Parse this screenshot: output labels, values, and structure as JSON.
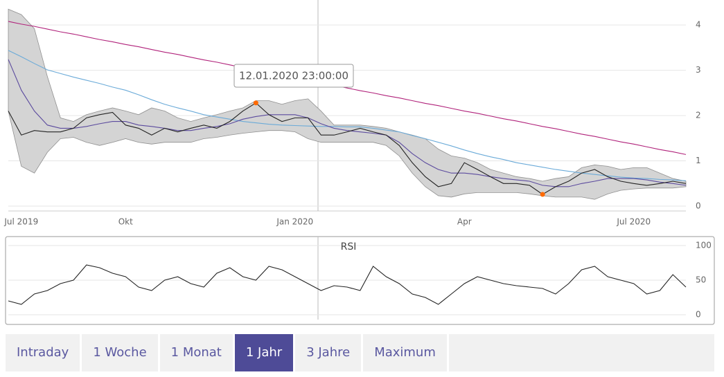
{
  "chart_data": [
    {
      "type": "line",
      "categories": [
        null,
        "Jul 2019",
        null,
        null,
        null,
        null,
        null,
        null,
        null,
        "Okt",
        null,
        null,
        null,
        null,
        null,
        null,
        null,
        null,
        null,
        null,
        null,
        null,
        "Jan 2020",
        null,
        null,
        null,
        null,
        null,
        null,
        null,
        null,
        null,
        null,
        null,
        null,
        "Apr",
        null,
        null,
        null,
        null,
        null,
        null,
        null,
        null,
        null,
        null,
        null,
        null,
        "Jul 2020",
        null,
        null,
        null,
        null
      ],
      "ylim": [
        0,
        4.4
      ],
      "yticks": [
        0,
        1,
        2,
        3,
        4
      ],
      "grid": true,
      "band": {
        "color": "#d4d4d4",
        "edge_color": "#8f8f8f",
        "upper": [
          4.35,
          4.23,
          3.92,
          2.86,
          1.95,
          1.87,
          2.02,
          2.1,
          2.17,
          2.1,
          2.02,
          2.17,
          2.1,
          1.95,
          1.87,
          1.95,
          2.02,
          2.1,
          2.17,
          2.33,
          2.33,
          2.25,
          2.33,
          2.37,
          2.1,
          1.79,
          1.79,
          1.79,
          1.76,
          1.72,
          1.64,
          1.57,
          1.49,
          1.26,
          1.11,
          1.06,
          0.96,
          0.81,
          0.73,
          0.65,
          0.61,
          0.55,
          0.61,
          0.65,
          0.85,
          0.91,
          0.88,
          0.81,
          0.85,
          0.85,
          0.73,
          0.61,
          0.55
        ],
        "lower": [
          2.1,
          0.88,
          0.73,
          1.19,
          1.49,
          1.52,
          1.41,
          1.34,
          1.41,
          1.49,
          1.41,
          1.37,
          1.41,
          1.41,
          1.41,
          1.49,
          1.52,
          1.57,
          1.61,
          1.64,
          1.67,
          1.67,
          1.64,
          1.49,
          1.41,
          1.41,
          1.41,
          1.41,
          1.41,
          1.34,
          1.11,
          0.73,
          0.43,
          0.23,
          0.2,
          0.27,
          0.3,
          0.3,
          0.3,
          0.3,
          0.27,
          0.23,
          0.2,
          0.2,
          0.2,
          0.15,
          0.27,
          0.35,
          0.38,
          0.4,
          0.4,
          0.4,
          0.43
        ]
      },
      "series": [
        {
          "color": "#b0217a",
          "values": [
            4.08,
            4.02,
            3.97,
            3.91,
            3.85,
            3.8,
            3.74,
            3.68,
            3.63,
            3.57,
            3.52,
            3.46,
            3.4,
            3.35,
            3.29,
            3.23,
            3.18,
            3.12,
            3.06,
            3.01,
            2.95,
            2.89,
            2.84,
            2.78,
            2.72,
            2.67,
            2.61,
            2.55,
            2.5,
            2.44,
            2.39,
            2.33,
            2.27,
            2.22,
            2.16,
            2.1,
            2.05,
            1.99,
            1.93,
            1.88,
            1.82,
            1.76,
            1.71,
            1.65,
            1.59,
            1.54,
            1.48,
            1.42,
            1.37,
            1.31,
            1.25,
            1.2,
            1.14
          ]
        },
        {
          "color": "#6aaad8",
          "values": [
            3.44,
            3.3,
            3.15,
            3.01,
            2.93,
            2.85,
            2.78,
            2.71,
            2.63,
            2.56,
            2.46,
            2.35,
            2.25,
            2.17,
            2.1,
            2.02,
            1.97,
            1.92,
            1.87,
            1.84,
            1.81,
            1.79,
            1.78,
            1.77,
            1.76,
            1.76,
            1.75,
            1.75,
            1.72,
            1.68,
            1.64,
            1.56,
            1.49,
            1.41,
            1.33,
            1.24,
            1.16,
            1.09,
            1.03,
            0.96,
            0.91,
            0.86,
            0.81,
            0.77,
            0.73,
            0.7,
            0.67,
            0.64,
            0.62,
            0.61,
            0.59,
            0.58,
            0.56
          ]
        },
        {
          "color": "#5b4a9e",
          "values": [
            3.24,
            2.56,
            2.1,
            1.79,
            1.72,
            1.72,
            1.76,
            1.82,
            1.87,
            1.87,
            1.79,
            1.76,
            1.72,
            1.67,
            1.67,
            1.72,
            1.76,
            1.82,
            1.92,
            1.98,
            2.02,
            2.02,
            2.02,
            1.95,
            1.82,
            1.72,
            1.67,
            1.64,
            1.61,
            1.57,
            1.41,
            1.16,
            0.96,
            0.81,
            0.73,
            0.73,
            0.7,
            0.65,
            0.61,
            0.58,
            0.55,
            0.46,
            0.43,
            0.43,
            0.5,
            0.55,
            0.61,
            0.61,
            0.61,
            0.58,
            0.53,
            0.5,
            0.46
          ]
        },
        {
          "color": "#222222",
          "mark_extremes": true,
          "extreme_color": "#ff6a00",
          "values": [
            2.1,
            1.57,
            1.67,
            1.64,
            1.64,
            1.72,
            1.95,
            2.02,
            2.07,
            1.79,
            1.72,
            1.57,
            1.72,
            1.64,
            1.72,
            1.79,
            1.72,
            1.87,
            2.1,
            2.28,
            2.02,
            1.87,
            1.95,
            1.95,
            1.57,
            1.57,
            1.64,
            1.72,
            1.64,
            1.57,
            1.34,
            0.96,
            0.65,
            0.43,
            0.5,
            0.96,
            0.81,
            0.65,
            0.5,
            0.5,
            0.46,
            0.26,
            0.43,
            0.55,
            0.73,
            0.81,
            0.65,
            0.55,
            0.5,
            0.46,
            0.5,
            0.55,
            0.5
          ]
        }
      ],
      "tooltip": "12.01.2020 23:00:00"
    },
    {
      "type": "line",
      "title": "RSI",
      "ylim": [
        0,
        100
      ],
      "yticks": [
        0,
        50,
        100
      ],
      "grid": true,
      "series": [
        {
          "color": "#222222",
          "values": [
            20,
            15,
            30,
            35,
            45,
            50,
            72,
            68,
            60,
            55,
            40,
            35,
            50,
            55,
            45,
            40,
            60,
            68,
            55,
            50,
            70,
            65,
            55,
            45,
            35,
            42,
            40,
            35,
            70,
            55,
            45,
            30,
            25,
            15,
            30,
            45,
            55,
            50,
            45,
            42,
            40,
            38,
            30,
            45,
            65,
            70,
            55,
            50,
            45,
            30,
            35,
            58,
            40
          ]
        }
      ]
    }
  ],
  "tabs": {
    "items": [
      "Intraday",
      "1 Woche",
      "1 Monat",
      "1 Jahr",
      "3 Jahre",
      "Maximum"
    ],
    "active_index": 3
  }
}
